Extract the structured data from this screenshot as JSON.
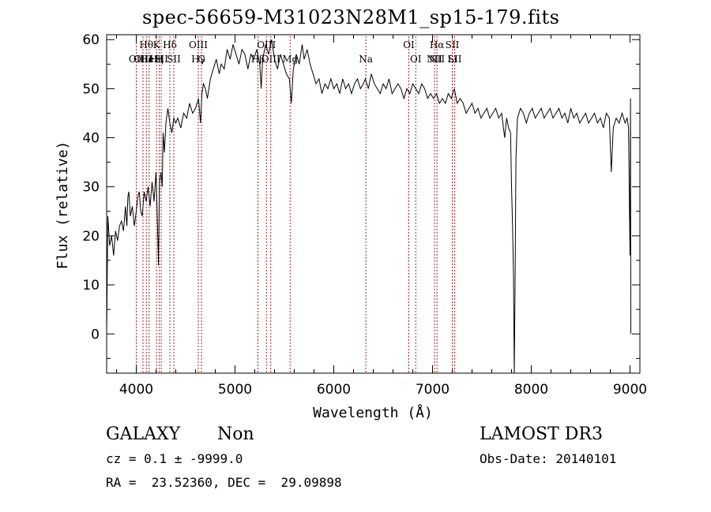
{
  "chart_data": {
    "type": "line",
    "title": "spec-56659-M31023N28M1_sp15-179.fits",
    "xlabel": "Wavelength (Å)",
    "ylabel": "Flux (relative)",
    "xlim": [
      3700,
      9100
    ],
    "ylim": [
      -8,
      61
    ],
    "xticks": [
      4000,
      5000,
      6000,
      7000,
      8000,
      9000
    ],
    "yticks": [
      0,
      10,
      20,
      30,
      40,
      50,
      60
    ],
    "grid": false,
    "line_color": "#000000",
    "marker_color": "#b22222",
    "series": [
      {
        "points": [
          [
            3700,
            0
          ],
          [
            3712,
            24
          ],
          [
            3730,
            18
          ],
          [
            3750,
            20
          ],
          [
            3770,
            16
          ],
          [
            3790,
            21
          ],
          [
            3810,
            19
          ],
          [
            3830,
            22
          ],
          [
            3850,
            23
          ],
          [
            3870,
            21
          ],
          [
            3890,
            26
          ],
          [
            3905,
            22
          ],
          [
            3915,
            28
          ],
          [
            3925,
            29
          ],
          [
            3940,
            24
          ],
          [
            3960,
            26
          ],
          [
            3980,
            22
          ],
          [
            4000,
            25
          ],
          [
            4015,
            28
          ],
          [
            4030,
            29
          ],
          [
            4045,
            25
          ],
          [
            4060,
            24
          ],
          [
            4080,
            29
          ],
          [
            4100,
            27
          ],
          [
            4120,
            30
          ],
          [
            4140,
            26
          ],
          [
            4160,
            31
          ],
          [
            4180,
            27
          ],
          [
            4200,
            33
          ],
          [
            4215,
            22
          ],
          [
            4225,
            14
          ],
          [
            4235,
            31
          ],
          [
            4250,
            33
          ],
          [
            4262,
            30
          ],
          [
            4272,
            41
          ],
          [
            4285,
            37
          ],
          [
            4300,
            43
          ],
          [
            4320,
            46
          ],
          [
            4340,
            43
          ],
          [
            4360,
            41
          ],
          [
            4380,
            44
          ],
          [
            4400,
            43
          ],
          [
            4420,
            44
          ],
          [
            4450,
            42
          ],
          [
            4480,
            45
          ],
          [
            4510,
            44
          ],
          [
            4540,
            47
          ],
          [
            4570,
            45
          ],
          [
            4600,
            46
          ],
          [
            4630,
            48
          ],
          [
            4650,
            43
          ],
          [
            4665,
            49
          ],
          [
            4680,
            51
          ],
          [
            4700,
            50
          ],
          [
            4720,
            48
          ],
          [
            4750,
            52
          ],
          [
            4780,
            54
          ],
          [
            4810,
            56
          ],
          [
            4840,
            53
          ],
          [
            4860,
            55
          ],
          [
            4890,
            54
          ],
          [
            4920,
            58
          ],
          [
            4950,
            56
          ],
          [
            4980,
            59
          ],
          [
            5010,
            57
          ],
          [
            5040,
            55
          ],
          [
            5070,
            58
          ],
          [
            5100,
            57
          ],
          [
            5130,
            54
          ],
          [
            5160,
            57
          ],
          [
            5190,
            56
          ],
          [
            5220,
            58
          ],
          [
            5250,
            55
          ],
          [
            5265,
            50
          ],
          [
            5280,
            56
          ],
          [
            5310,
            59
          ],
          [
            5340,
            57
          ],
          [
            5370,
            60
          ],
          [
            5400,
            56
          ],
          [
            5430,
            54
          ],
          [
            5460,
            57
          ],
          [
            5490,
            55
          ],
          [
            5520,
            53
          ],
          [
            5550,
            52
          ],
          [
            5570,
            47
          ],
          [
            5590,
            54
          ],
          [
            5620,
            57
          ],
          [
            5650,
            55
          ],
          [
            5680,
            59
          ],
          [
            5700,
            56
          ],
          [
            5730,
            58
          ],
          [
            5760,
            55
          ],
          [
            5790,
            53
          ],
          [
            5820,
            51
          ],
          [
            5850,
            52
          ],
          [
            5880,
            49
          ],
          [
            5910,
            51
          ],
          [
            5940,
            50
          ],
          [
            5970,
            52
          ],
          [
            6000,
            50
          ],
          [
            6030,
            51
          ],
          [
            6060,
            49
          ],
          [
            6090,
            52
          ],
          [
            6120,
            50
          ],
          [
            6150,
            51
          ],
          [
            6180,
            49
          ],
          [
            6210,
            51
          ],
          [
            6240,
            52
          ],
          [
            6270,
            50
          ],
          [
            6300,
            51
          ],
          [
            6320,
            52
          ],
          [
            6350,
            50
          ],
          [
            6380,
            53
          ],
          [
            6410,
            51
          ],
          [
            6440,
            50
          ],
          [
            6470,
            49
          ],
          [
            6500,
            51
          ],
          [
            6530,
            50
          ],
          [
            6560,
            52
          ],
          [
            6590,
            49
          ],
          [
            6620,
            50
          ],
          [
            6650,
            51
          ],
          [
            6680,
            50
          ],
          [
            6710,
            48
          ],
          [
            6740,
            50
          ],
          [
            6770,
            49
          ],
          [
            6800,
            51
          ],
          [
            6830,
            50
          ],
          [
            6860,
            49
          ],
          [
            6890,
            51
          ],
          [
            6920,
            50
          ],
          [
            6950,
            48
          ],
          [
            6980,
            49
          ],
          [
            7010,
            48
          ],
          [
            7040,
            49
          ],
          [
            7070,
            47
          ],
          [
            7100,
            48
          ],
          [
            7130,
            47
          ],
          [
            7160,
            49
          ],
          [
            7190,
            48
          ],
          [
            7220,
            50
          ],
          [
            7250,
            47
          ],
          [
            7280,
            48
          ],
          [
            7310,
            47
          ],
          [
            7340,
            45
          ],
          [
            7370,
            46
          ],
          [
            7400,
            47
          ],
          [
            7430,
            45
          ],
          [
            7460,
            46
          ],
          [
            7490,
            44
          ],
          [
            7520,
            45
          ],
          [
            7550,
            46
          ],
          [
            7580,
            44
          ],
          [
            7610,
            45
          ],
          [
            7640,
            46
          ],
          [
            7670,
            44
          ],
          [
            7700,
            45
          ],
          [
            7730,
            40
          ],
          [
            7750,
            44
          ],
          [
            7770,
            42
          ],
          [
            7790,
            41
          ],
          [
            7800,
            30
          ],
          [
            7810,
            22
          ],
          [
            7820,
            12
          ],
          [
            7828,
            -8
          ],
          [
            7836,
            10
          ],
          [
            7845,
            36
          ],
          [
            7860,
            44
          ],
          [
            7890,
            46
          ],
          [
            7920,
            45
          ],
          [
            7950,
            43
          ],
          [
            7980,
            45
          ],
          [
            8010,
            46
          ],
          [
            8040,
            44
          ],
          [
            8070,
            45
          ],
          [
            8100,
            46
          ],
          [
            8130,
            44
          ],
          [
            8160,
            45
          ],
          [
            8190,
            46
          ],
          [
            8220,
            44
          ],
          [
            8250,
            45
          ],
          [
            8280,
            46
          ],
          [
            8310,
            44
          ],
          [
            8340,
            45
          ],
          [
            8370,
            43
          ],
          [
            8400,
            46
          ],
          [
            8430,
            44
          ],
          [
            8460,
            45
          ],
          [
            8490,
            43
          ],
          [
            8520,
            44
          ],
          [
            8550,
            45
          ],
          [
            8580,
            43
          ],
          [
            8610,
            44
          ],
          [
            8640,
            45
          ],
          [
            8670,
            43
          ],
          [
            8700,
            44
          ],
          [
            8730,
            42
          ],
          [
            8760,
            45
          ],
          [
            8790,
            44
          ],
          [
            8810,
            33
          ],
          [
            8830,
            42
          ],
          [
            8860,
            44
          ],
          [
            8890,
            43
          ],
          [
            8920,
            45
          ],
          [
            8950,
            43
          ],
          [
            8970,
            44
          ],
          [
            8985,
            42
          ],
          [
            8995,
            24
          ],
          [
            9000,
            16
          ],
          [
            9005,
            48
          ],
          [
            9008,
            0
          ]
        ]
      }
    ],
    "lines": [
      {
        "wavelength": 4000,
        "upper": "",
        "lower": "OII"
      },
      {
        "wavelength": 4068,
        "upper": "",
        "lower": "OIII"
      },
      {
        "wavelength": 4102,
        "upper": "Hθ",
        "lower": "Hε"
      },
      {
        "wavelength": 4130,
        "upper": "",
        "lower": "HeI"
      },
      {
        "wavelength": 4205,
        "upper": "K",
        "lower": "Hη"
      },
      {
        "wavelength": 4232,
        "upper": "",
        "lower": "H"
      },
      {
        "wavelength": 4252,
        "upper": "",
        "lower": "SII"
      },
      {
        "wavelength": 4340,
        "upper": "Hδ",
        "lower": ""
      },
      {
        "wavelength": 4380,
        "upper": "",
        "lower": "SII"
      },
      {
        "wavelength": 4628,
        "upper": "OIII",
        "lower": "Hγ"
      },
      {
        "wavelength": 4660,
        "upper": "",
        "lower": "G"
      },
      {
        "wavelength": 5232,
        "upper": "",
        "lower": "Hβ"
      },
      {
        "wavelength": 5318,
        "upper": "OIII",
        "lower": ""
      },
      {
        "wavelength": 5362,
        "upper": "",
        "lower": "OIII"
      },
      {
        "wavelength": 5558,
        "upper": "",
        "lower": "Mg"
      },
      {
        "wavelength": 6325,
        "upper": "",
        "lower": "Na"
      },
      {
        "wavelength": 6760,
        "upper": "OI",
        "lower": ""
      },
      {
        "wavelength": 6830,
        "upper": "",
        "lower": "OI"
      },
      {
        "wavelength": 7020,
        "upper": "",
        "lower": "NII"
      },
      {
        "wavelength": 7045,
        "upper": "Hα",
        "lower": "NII"
      },
      {
        "wavelength": 7200,
        "upper": "SII",
        "lower": "Li"
      },
      {
        "wavelength": 7225,
        "upper": "",
        "lower": "SII"
      }
    ]
  },
  "info": {
    "object_class": "GALAXY",
    "subclass": "Non",
    "release": "LAMOST DR3",
    "cz_line": "cz = 0.1 ± -9999.0",
    "obs_date": "Obs-Date: 20140101",
    "radec": "RA =  23.52360, DEC =  29.09898"
  }
}
